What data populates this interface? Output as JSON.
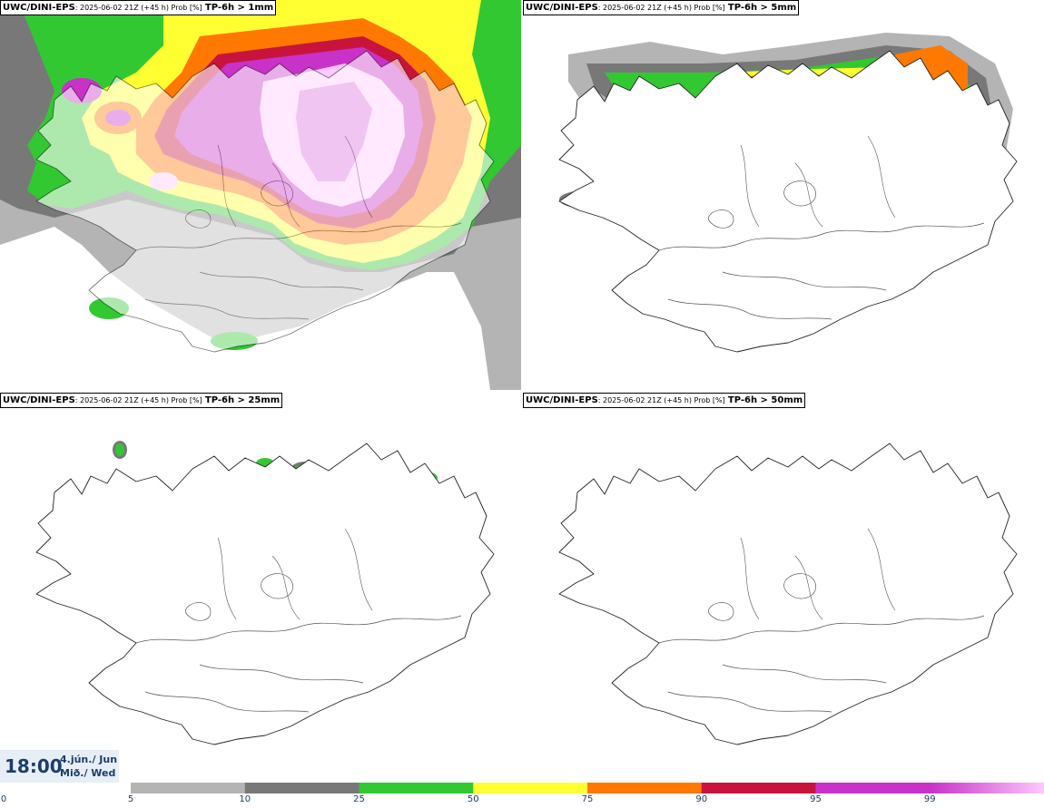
{
  "panels": [
    {
      "source": "UWC/DINI-EPS",
      "run": ": 2025-06-02 21Z (+45 h) Prob [%]",
      "variable": "TP-6h > 1mm"
    },
    {
      "source": "UWC/DINI-EPS",
      "run": ": 2025-06-02 21Z (+45 h) Prob [%]",
      "variable": "TP-6h > 5mm"
    },
    {
      "source": "UWC/DINI-EPS",
      "run": ": 2025-06-02 21Z (+45 h) Prob [%]",
      "variable": "TP-6h > 25mm"
    },
    {
      "source": "UWC/DINI-EPS",
      "run": ": 2025-06-02 21Z (+45 h) Prob [%]",
      "variable": "TP-6h > 50mm"
    }
  ],
  "time": {
    "hour": "18:00",
    "date_line1": "4.jún./ Jun",
    "date_line2": "Mið./ Wed"
  },
  "colorbar": {
    "ticks": [
      "0",
      "5",
      "10",
      "25",
      "50",
      "75",
      "90",
      "95",
      "99"
    ],
    "colors": [
      "#b4b4b4",
      "#787878",
      "#32c832",
      "#ffff32",
      "#ff7800",
      "#c8143c",
      "#c832c8",
      "#ffc8ff"
    ],
    "gradient_last": [
      "#c832c8",
      "#ffc8ff"
    ]
  },
  "map_colors": {
    "prob_5": "#b4b4b4",
    "prob_10": "#787878",
    "prob_25": "#32c832",
    "prob_50": "#ffff32",
    "prob_75": "#ff7800",
    "prob_90": "#c8143c",
    "prob_95": "#c832c8",
    "prob_99": "#ffc8ff",
    "coast": "#222222",
    "roads": "#555555"
  }
}
